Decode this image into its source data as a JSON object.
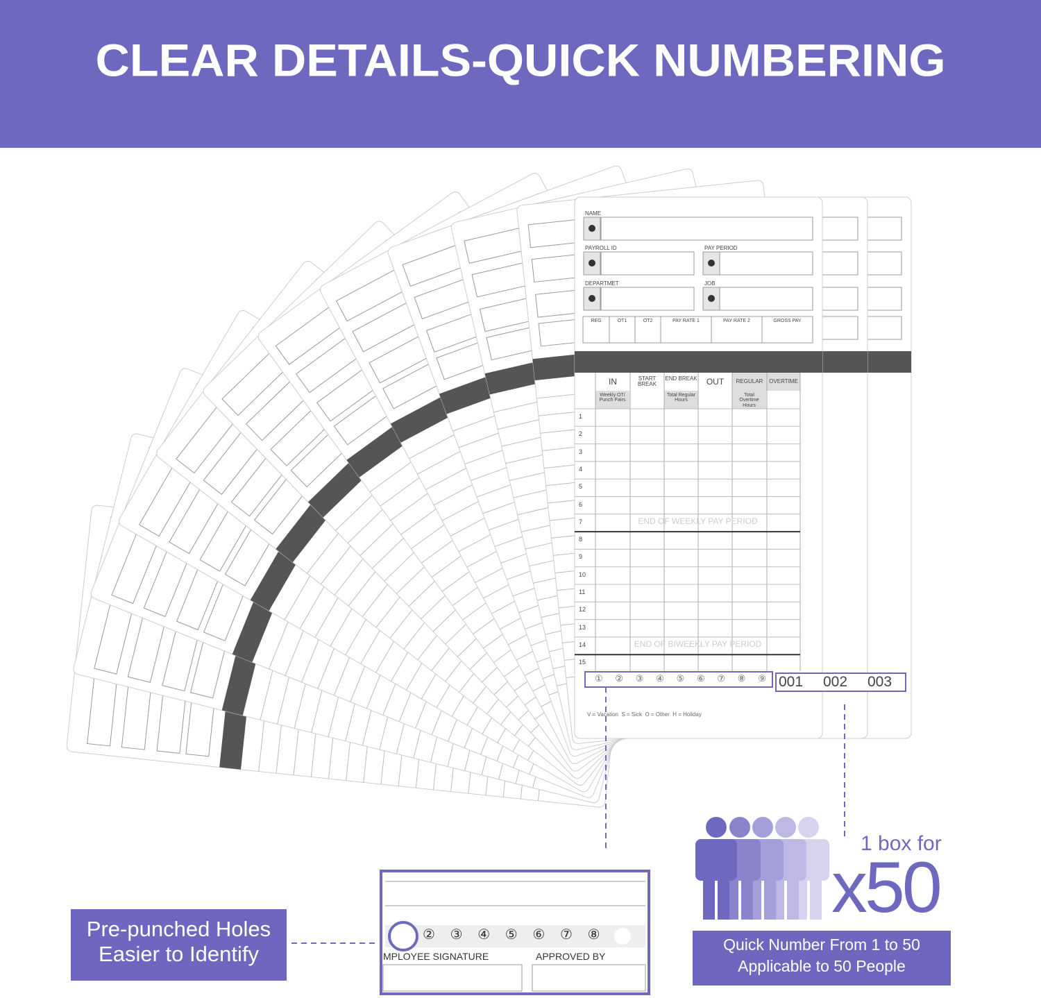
{
  "header": {
    "title": "CLEAR DETAILS-QUICK NUMBERING"
  },
  "card": {
    "fields": {
      "name": "NAME",
      "payroll_id": "PAYROLL ID",
      "pay_period": "PAY PERIOD",
      "department": "DEPARTMET",
      "job": "JOB"
    },
    "pay_columns": [
      "REG",
      "OT1",
      "OT2",
      "PAY RATE 1",
      "PAY RATE 2",
      "GROSS PAY"
    ],
    "time_columns": [
      "IN",
      "START BREAK",
      "END BREAK",
      "OUT",
      "REGULAR",
      "OVERTIME"
    ],
    "subheaders": [
      "Weekly OT/ Punch Pairs",
      "Total Regular Hours",
      "Total Overtime Hours"
    ],
    "rows": [
      1,
      2,
      3,
      4,
      5,
      6,
      7,
      8,
      9,
      10,
      11,
      12,
      13,
      14,
      15
    ],
    "period_markers": [
      "END OF WEEKLY PAY PERIOD",
      "END OF BIWEEKLY PAY PERIOD"
    ],
    "punch_holes": [
      "①",
      "②",
      "③",
      "④",
      "⑤",
      "⑥",
      "⑦",
      "⑧",
      "⑨"
    ],
    "serial_numbers": [
      "001",
      "002",
      "003"
    ],
    "legend": "V = Vacation  S = Sick  O = Other  H = Holiday"
  },
  "callouts": {
    "holes_label": [
      "Pre-punched Holes",
      "Easier to Identify"
    ],
    "box_label": "1 box for",
    "multiplier": "x50",
    "quick_number_label": [
      "Quick Number From 1 to 50",
      "Applicable to 50 People"
    ]
  },
  "zoom": {
    "hole_numbers": [
      "②",
      "③",
      "④",
      "⑤",
      "⑥",
      "⑦",
      "⑧"
    ],
    "employee_signature": "MPLOYEE SIGNATURE",
    "approved_by": "APPROVED BY"
  }
}
